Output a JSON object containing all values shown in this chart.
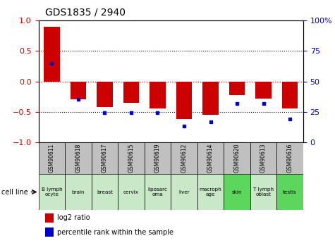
{
  "title": "GDS1835 / 2940",
  "samples": [
    "GSM90611",
    "GSM90618",
    "GSM90617",
    "GSM90615",
    "GSM90619",
    "GSM90612",
    "GSM90614",
    "GSM90620",
    "GSM90613",
    "GSM90616"
  ],
  "cell_lines": [
    "B lymph\nocyte",
    "brain",
    "breast",
    "cervix",
    "liposarc\noma",
    "liver",
    "macroph\nage",
    "skin",
    "T lymph\noblast",
    "testis"
  ],
  "cell_line_colors": [
    "#c8e8c8",
    "#c8e8c8",
    "#c8e8c8",
    "#c8e8c8",
    "#c8e8c8",
    "#c8e8c8",
    "#c8e8c8",
    "#5cd65c",
    "#c8e8c8",
    "#5cd65c"
  ],
  "log2_ratio": [
    0.9,
    -0.3,
    -0.42,
    -0.35,
    -0.45,
    -0.62,
    -0.55,
    -0.22,
    -0.28,
    -0.45
  ],
  "percentile_rank": [
    65,
    35,
    24,
    24,
    24,
    13,
    17,
    32,
    32,
    19
  ],
  "bar_color": "#cc0000",
  "dot_color": "#0000cc",
  "left_ylim": [
    -1,
    1
  ],
  "right_ylim": [
    0,
    100
  ],
  "left_yticks": [
    -1,
    -0.5,
    0,
    0.5,
    1
  ],
  "right_yticks": [
    0,
    25,
    50,
    75,
    100
  ],
  "dotted_lines_black": [
    -0.5,
    0.5
  ],
  "zero_line_color": "#cc0000",
  "bg_color": "#ffffff",
  "sample_bg": "#c0c0c0"
}
